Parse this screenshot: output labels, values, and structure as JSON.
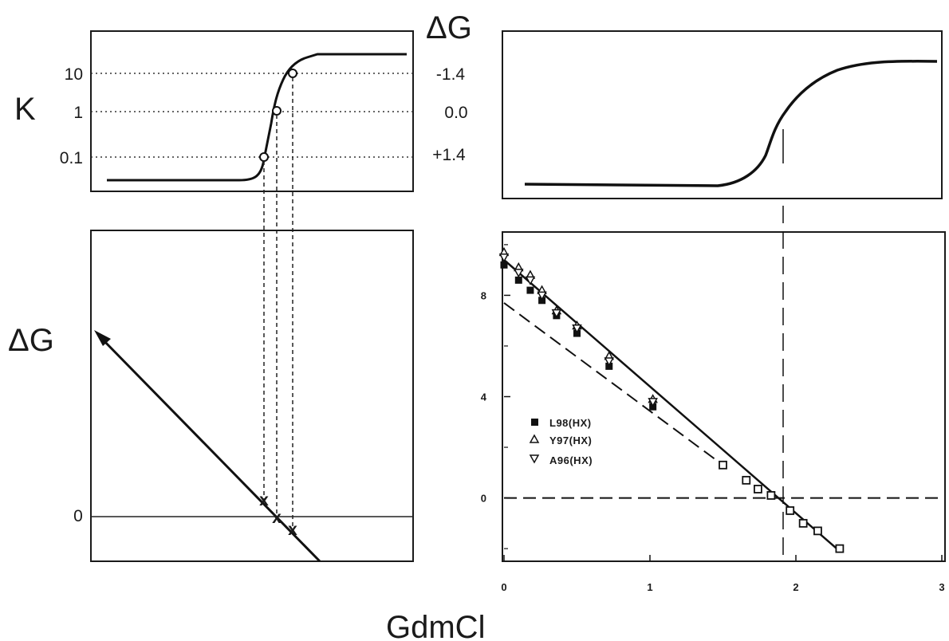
{
  "figure": {
    "k_label": "K",
    "dg_top_label": "ΔG",
    "dg_left_label": "ΔG",
    "xlabel": "GdmCl"
  },
  "chart_data": [
    {
      "id": "k-curve",
      "type": "line",
      "title": "",
      "ylabel": "K",
      "yscale": "log",
      "yticks": [
        "10",
        "1",
        "0.1"
      ],
      "right_ticks": [
        "-1.4",
        "0.0",
        "+1.4"
      ],
      "marked_points": [
        {
          "K": 0.1
        },
        {
          "K": 1
        },
        {
          "K": 10
        }
      ]
    },
    {
      "id": "unfolding-curve",
      "type": "line",
      "title": "",
      "note": "sigmoidal transition, midpoint marked by vertical line"
    },
    {
      "id": "dg-schematic",
      "type": "line",
      "ylabel": "ΔG",
      "yticks": [
        "0"
      ],
      "marked_points": [
        "x",
        "x",
        "x"
      ]
    },
    {
      "id": "dg-vs-gdmcl",
      "type": "scatter",
      "xlabel": "GdmCl",
      "xlim": [
        0,
        3
      ],
      "ylim": [
        -2.5,
        10.5
      ],
      "xticks": [
        "0",
        "1",
        "2",
        "3"
      ],
      "yticks": [
        "0",
        "4",
        "8"
      ],
      "legend_position": "left-center",
      "series": [
        {
          "name": "L98(HX)",
          "marker": "filled-square",
          "x": [
            0,
            0.1,
            0.18,
            0.26,
            0.36,
            0.5,
            0.72,
            1.02
          ],
          "y": [
            9.2,
            8.6,
            8.2,
            7.8,
            7.2,
            6.5,
            5.2,
            3.6
          ]
        },
        {
          "name": "Y97(HX)",
          "marker": "open-triangle-up",
          "x": [
            0,
            0.1,
            0.18,
            0.26,
            0.36,
            0.5,
            0.72,
            1.02
          ],
          "y": [
            9.7,
            9.1,
            8.8,
            8.2,
            7.4,
            6.8,
            5.6,
            3.9
          ]
        },
        {
          "name": "A96(HX)",
          "marker": "open-triangle-down",
          "x": [
            0,
            0.1,
            0.18,
            0.26,
            0.36,
            0.5,
            0.72,
            1.02
          ],
          "y": [
            9.5,
            8.9,
            8.6,
            8.0,
            7.3,
            6.7,
            5.4,
            3.8
          ]
        },
        {
          "name": "",
          "marker": "open-square",
          "x": [
            1.5,
            1.66,
            1.74,
            1.83,
            1.96,
            2.05,
            2.15,
            2.3
          ],
          "y": [
            1.3,
            0.7,
            0.35,
            0.1,
            -0.5,
            -1.0,
            -1.3,
            -2.0
          ]
        }
      ],
      "fit_lines": [
        {
          "style": "solid",
          "x": [
            0,
            2.3
          ],
          "y": [
            9.4,
            -2.1
          ]
        },
        {
          "style": "dashed",
          "x": [
            0,
            1.5
          ],
          "y": [
            7.7,
            1.3
          ]
        },
        {
          "style": "dashed",
          "x": [
            0,
            3.0
          ],
          "y": [
            0,
            0
          ]
        }
      ],
      "midpoint_x": 1.86
    }
  ]
}
